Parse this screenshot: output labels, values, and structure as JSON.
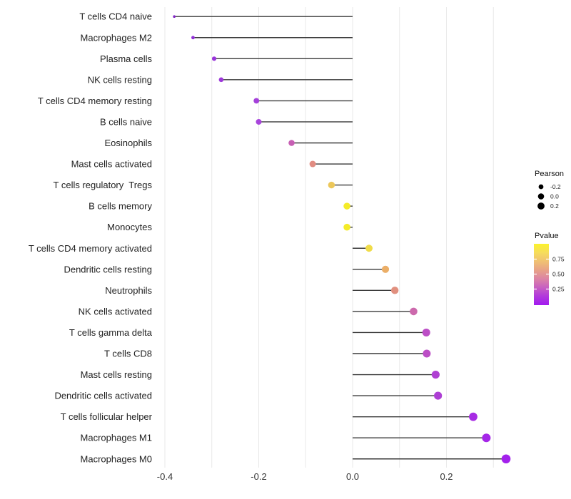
{
  "figure": {
    "background": "#FFFFFF"
  },
  "chart_data": {
    "type": "lollipop",
    "orientation": "horizontal",
    "title": "",
    "xlabel": "",
    "ylabel": "",
    "x_tick_labels": [
      "-0.4",
      "-0.2",
      "0.0",
      "0.2"
    ],
    "x_tick_values": [
      -0.4,
      -0.2,
      0.0,
      0.2
    ],
    "x_range": [
      -0.44,
      0.35
    ],
    "grid": {
      "vertical_lines_at": [
        -0.4,
        -0.3,
        -0.2,
        -0.1,
        0.0,
        0.1,
        0.2,
        0.3
      ],
      "color": "#E9E9E9",
      "horizontal": false
    },
    "stem_color": "#3A3A3A",
    "baseline_value": 0.0,
    "points": [
      {
        "label": "T cells CD4 naive",
        "pearson": -0.38,
        "color": "#8227C6",
        "radius": 1.8
      },
      {
        "label": "Macrophages M2",
        "pearson": -0.34,
        "color": "#9130D6",
        "radius": 2.4
      },
      {
        "label": "Plasma cells",
        "pearson": -0.295,
        "color": "#9934DA",
        "radius": 3.1
      },
      {
        "label": "NK cells resting",
        "pearson": -0.28,
        "color": "#9D38DA",
        "radius": 3.3
      },
      {
        "label": "T cells CD4 memory resting",
        "pearson": -0.205,
        "color": "#A440DA",
        "radius": 3.9
      },
      {
        "label": "B cells naive",
        "pearson": -0.2,
        "color": "#A845DC",
        "radius": 4.0
      },
      {
        "label": "Eosinophils",
        "pearson": -0.13,
        "color": "#C75FB4",
        "radius": 4.3
      },
      {
        "label": "Mast cells activated",
        "pearson": -0.085,
        "color": "#E18C82",
        "radius": 4.5
      },
      {
        "label": "T cells regulatory  Tregs",
        "pearson": -0.045,
        "color": "#ECC75A",
        "radius": 4.7
      },
      {
        "label": "B cells memory",
        "pearson": -0.012,
        "color": "#F4EB28",
        "radius": 4.8
      },
      {
        "label": "Monocytes",
        "pearson": -0.012,
        "color": "#F4EB28",
        "radius": 4.8
      },
      {
        "label": "T cells CD4 memory activated",
        "pearson": 0.035,
        "color": "#F0DC49",
        "radius": 5.0
      },
      {
        "label": "Dendritic cells resting",
        "pearson": 0.07,
        "color": "#EBAE67",
        "radius": 5.1
      },
      {
        "label": "Neutrophils",
        "pearson": 0.09,
        "color": "#E1907F",
        "radius": 5.2
      },
      {
        "label": "NK cells activated",
        "pearson": 0.13,
        "color": "#CC69AC",
        "radius": 5.3
      },
      {
        "label": "T cells gamma delta",
        "pearson": 0.157,
        "color": "#BC4EC6",
        "radius": 5.5
      },
      {
        "label": "T cells CD8",
        "pearson": 0.158,
        "color": "#BC4EC6",
        "radius": 5.5
      },
      {
        "label": "Mast cells resting",
        "pearson": 0.177,
        "color": "#AF40D2",
        "radius": 5.6
      },
      {
        "label": "Dendritic cells activated",
        "pearson": 0.182,
        "color": "#AD3ED4",
        "radius": 5.6
      },
      {
        "label": "T cells follicular helper",
        "pearson": 0.257,
        "color": "#A72BE4",
        "radius": 5.9
      },
      {
        "label": "Macrophages M1",
        "pearson": 0.285,
        "color": "#A527E8",
        "radius": 6.0
      },
      {
        "label": "Macrophages M0",
        "pearson": 0.327,
        "color": "#A321EC",
        "radius": 6.3
      }
    ],
    "legend": {
      "position": "right",
      "size": {
        "title": "Pearson",
        "dot_color": "#000000",
        "entries": [
          {
            "label": "-0.2",
            "radius": 3.4
          },
          {
            "label": "0.0",
            "radius": 4.3
          },
          {
            "label": "0.2",
            "radius": 4.9
          }
        ]
      },
      "color": {
        "title": "Pvalue",
        "tick_labels": [
          "0.75",
          "0.50",
          "0.25"
        ],
        "top_value": 1.0,
        "bottom_value": 0.0,
        "gradient_top_to_bottom": [
          "#FBF32B",
          "#F6DC5C",
          "#F0C172",
          "#E8A287",
          "#DC84A5",
          "#C75FC2",
          "#B138DC",
          "#A21AF0"
        ]
      }
    }
  }
}
